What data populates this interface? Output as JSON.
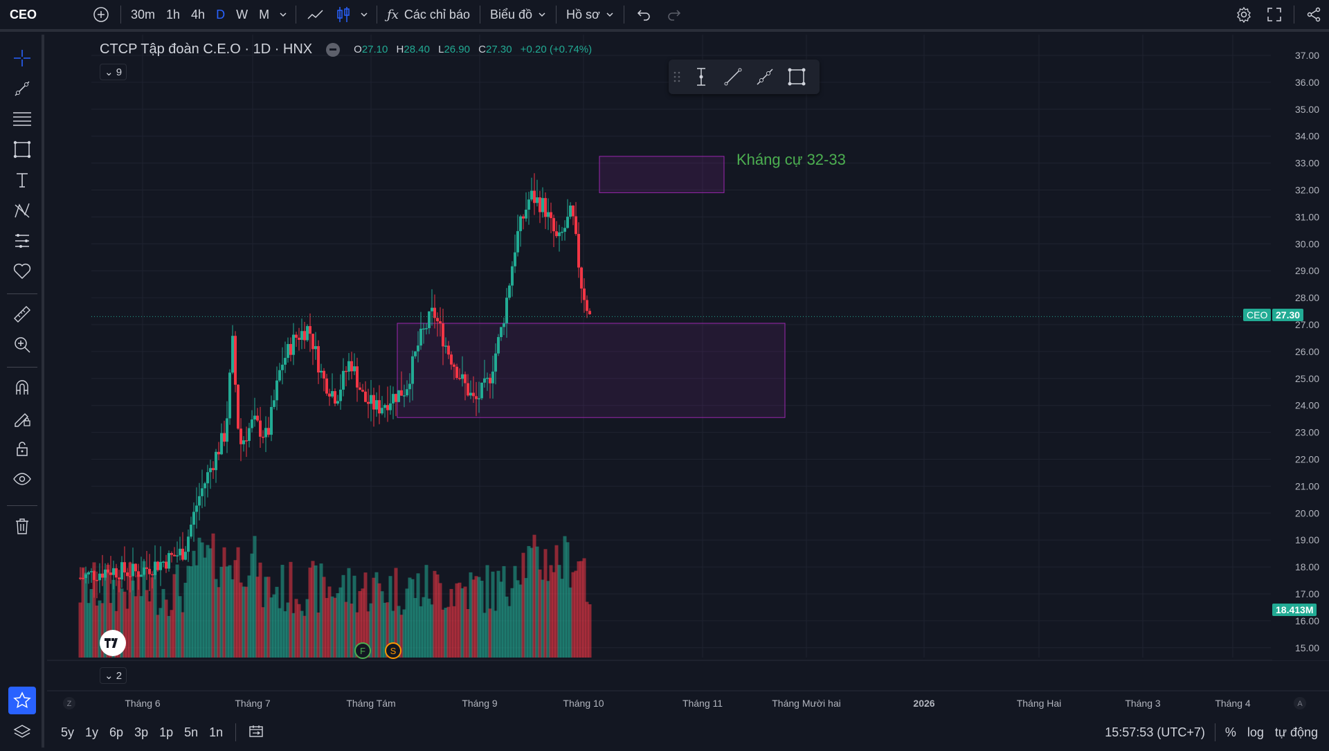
{
  "topbar": {
    "symbol": "CEO",
    "intervals": [
      "30m",
      "1h",
      "4h",
      "D",
      "W",
      "M"
    ],
    "active_interval": "D",
    "indicators_label": "Các chỉ báo",
    "chart_label": "Biểu đồ",
    "profile_label": "Hồ sơ"
  },
  "legend": {
    "title": "CTCP Tập đoàn C.E.O · 1D · HNX",
    "o_key": "O",
    "o_val": "27.10",
    "h_key": "H",
    "h_val": "28.40",
    "l_key": "L",
    "l_val": "26.90",
    "c_key": "C",
    "c_val": "27.30",
    "change": "+0.20 (+0.74%)",
    "collapse_main": "9",
    "collapse_volume": "2"
  },
  "annotation": {
    "text": "Kháng cự 32-33",
    "color": "#4caf50"
  },
  "price_axis": {
    "labels": [
      "37.00",
      "36.00",
      "35.00",
      "34.00",
      "33.00",
      "32.00",
      "31.00",
      "30.00",
      "29.00",
      "28.00",
      "27.00",
      "26.00",
      "25.00",
      "24.00",
      "23.00",
      "22.00",
      "21.00",
      "20.00",
      "19.00",
      "18.00",
      "17.00",
      "16.00",
      "15.00"
    ],
    "last_symbol": "CEO",
    "last_price": "27.30",
    "volume_label": "18.413M"
  },
  "time_axis": {
    "labels": [
      "Tháng 6",
      "Tháng 7",
      "Tháng Tám",
      "Tháng 9",
      "Tháng 10",
      "Tháng 11",
      "Tháng Mười hai",
      "2026",
      "Tháng Hai",
      "Tháng 3",
      "Tháng 4"
    ],
    "left_btn": "Z",
    "right_btn": "A"
  },
  "markers": [
    "F",
    "S"
  ],
  "bottombar": {
    "ranges": [
      "5y",
      "1y",
      "6p",
      "3p",
      "1p",
      "5n",
      "1n"
    ],
    "time": "15:57:53 (UTC+7)",
    "percent": "%",
    "log": "log",
    "auto": "tự động"
  },
  "colors": {
    "up": "#22ab94",
    "down": "#f23645",
    "bg": "#131722",
    "box": "#9c27b0",
    "accent": "#2962ff"
  }
}
